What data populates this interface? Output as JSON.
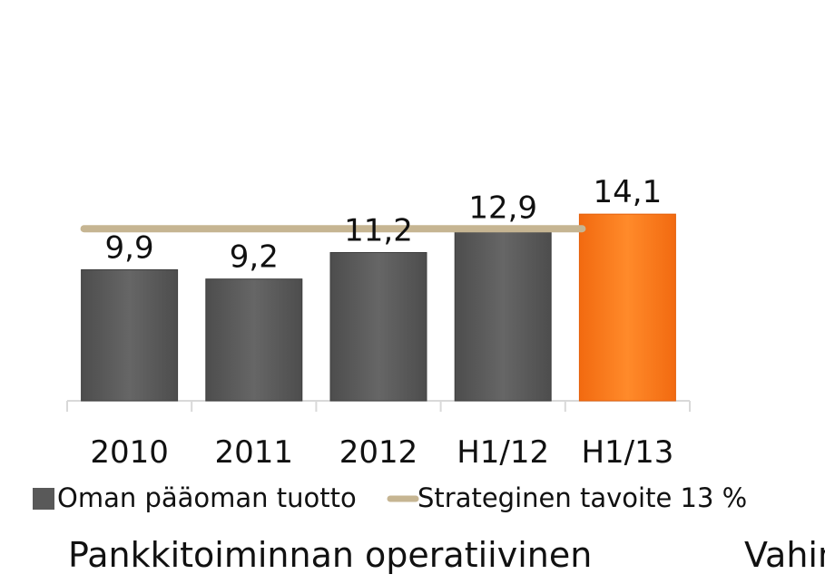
{
  "chart_data": {
    "type": "bar",
    "categories": [
      "2010",
      "2011",
      "2012",
      "H1/12",
      "H1/13"
    ],
    "series": [
      {
        "name": "Oman pääoman tuotto",
        "values": [
          9.9,
          9.2,
          11.2,
          12.9,
          14.1
        ],
        "value_labels": [
          "9,9",
          "9,2",
          "11,2",
          "12,9",
          "14,1"
        ],
        "color": "#595959",
        "highlight_color": "#fa7a1e",
        "highlight_index": 4
      },
      {
        "name": "Strateginen tavoite 13 %",
        "type": "line",
        "value": 13,
        "color": "#c6b592"
      }
    ],
    "ylim": [
      0,
      16
    ],
    "title": "",
    "xlabel": "",
    "ylabel": "",
    "legend_position": "bottom"
  },
  "captions": {
    "left": "Pankkitoiminnan operatiivinen",
    "right": "Vahin"
  }
}
